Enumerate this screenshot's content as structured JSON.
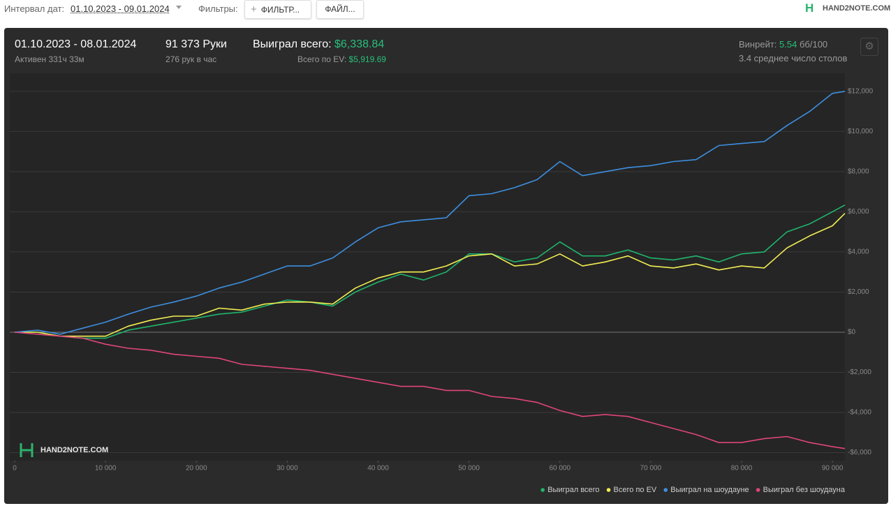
{
  "toolbar": {
    "date_label": "Интервал дат:",
    "date_range": "01.10.2023 - 09.01.2024",
    "filters_label": "Фильтры:",
    "filter_button": "ФИЛЬТР...",
    "file_button": "ФАЙЛ...",
    "logo": "HAND2NOTE.COM"
  },
  "stats": {
    "period": "01.10.2023 - 08.01.2024",
    "active": "Активен 331ч 33м",
    "hands": "91 373 Руки",
    "hands_per_hour": "276 рук в час",
    "won_label": "Выиграл всего:",
    "won_value": "$6,338.84",
    "ev_label": "Всего по EV:",
    "ev_value": "$5,919.69",
    "winrate_label": "Винрейт:",
    "winrate_value": "5.54",
    "winrate_unit": "бб/100",
    "tables": "3.4 среднее число столов"
  },
  "chart_data": {
    "type": "line",
    "watermark": "HAND2NOTE.COM",
    "grid": true,
    "x": [
      0,
      2500,
      5000,
      7500,
      10000,
      12500,
      15000,
      17500,
      20000,
      22500,
      25000,
      27500,
      30000,
      32500,
      35000,
      37500,
      40000,
      42500,
      45000,
      47500,
      50000,
      52500,
      55000,
      57500,
      60000,
      62500,
      65000,
      67500,
      70000,
      72500,
      75000,
      77500,
      80000,
      82500,
      85000,
      87500,
      90000,
      91373
    ],
    "xlim": [
      0,
      91373
    ],
    "xticks": [
      0,
      {
        "value": 10000,
        "label": "10 000"
      },
      {
        "value": 20000,
        "label": "20 000"
      },
      {
        "value": 30000,
        "label": "30 000"
      },
      {
        "value": 40000,
        "label": "40 000"
      },
      {
        "value": 50000,
        "label": "50 000"
      },
      {
        "value": 60000,
        "label": "60 000"
      },
      {
        "value": 70000,
        "label": "70 000"
      },
      {
        "value": 80000,
        "label": "80 000"
      },
      {
        "value": 90000,
        "label": "90 000"
      }
    ],
    "ylim": [
      -6400,
      12900
    ],
    "yticks": [
      {
        "value": -6000,
        "label": "-$6,000"
      },
      {
        "value": -4000,
        "label": "-$4,000"
      },
      {
        "value": -2000,
        "label": "-$2,000"
      },
      {
        "value": 0,
        "label": "$0"
      },
      {
        "value": 2000,
        "label": "$2,000"
      },
      {
        "value": 4000,
        "label": "$4,000"
      },
      {
        "value": 6000,
        "label": "$6,000"
      },
      {
        "value": 8000,
        "label": "$8,000"
      },
      {
        "value": 10000,
        "label": "$10,000"
      },
      {
        "value": 12000,
        "label": "$12,000"
      }
    ],
    "series": [
      {
        "name": "Выиграл всего",
        "color": "#1fb56c",
        "values": [
          0,
          0,
          -200,
          -300,
          -300,
          100,
          300,
          500,
          700,
          900,
          1000,
          1300,
          1600,
          1500,
          1300,
          2000,
          2500,
          2900,
          2600,
          3000,
          3900,
          3900,
          3500,
          3700,
          4500,
          3800,
          3800,
          4100,
          3700,
          3600,
          3800,
          3500,
          3900,
          4000,
          5000,
          5400,
          6000,
          6339
        ]
      },
      {
        "name": "Всего по EV",
        "color": "#f2ee52",
        "values": [
          0,
          0,
          -200,
          -200,
          -200,
          300,
          600,
          800,
          800,
          1200,
          1100,
          1400,
          1500,
          1500,
          1400,
          2200,
          2700,
          3000,
          3000,
          3300,
          3800,
          3900,
          3300,
          3400,
          3900,
          3300,
          3500,
          3800,
          3300,
          3200,
          3400,
          3100,
          3300,
          3200,
          4200,
          4800,
          5300,
          5920
        ]
      },
      {
        "name": "Выиграл на шоудауне",
        "color": "#3d8fe0",
        "values": [
          0,
          100,
          -100,
          200,
          500,
          900,
          1250,
          1500,
          1800,
          2200,
          2500,
          2900,
          3300,
          3300,
          3700,
          4500,
          5200,
          5500,
          5600,
          5700,
          6800,
          6900,
          7200,
          7600,
          8500,
          7800,
          8000,
          8200,
          8300,
          8500,
          8600,
          9300,
          9400,
          9500,
          10300,
          11000,
          11900,
          12000
        ]
      },
      {
        "name": "Выиграл без шоудауна",
        "color": "#e0457b",
        "values": [
          0,
          -100,
          -200,
          -300,
          -600,
          -800,
          -900,
          -1100,
          -1200,
          -1300,
          -1600,
          -1700,
          -1800,
          -1900,
          -2100,
          -2300,
          -2500,
          -2700,
          -2700,
          -2900,
          -2900,
          -3200,
          -3300,
          -3500,
          -3900,
          -4200,
          -4100,
          -4200,
          -4500,
          -4800,
          -5100,
          -5500,
          -5500,
          -5300,
          -5200,
          -5500,
          -5700,
          -5800
        ]
      }
    ]
  }
}
